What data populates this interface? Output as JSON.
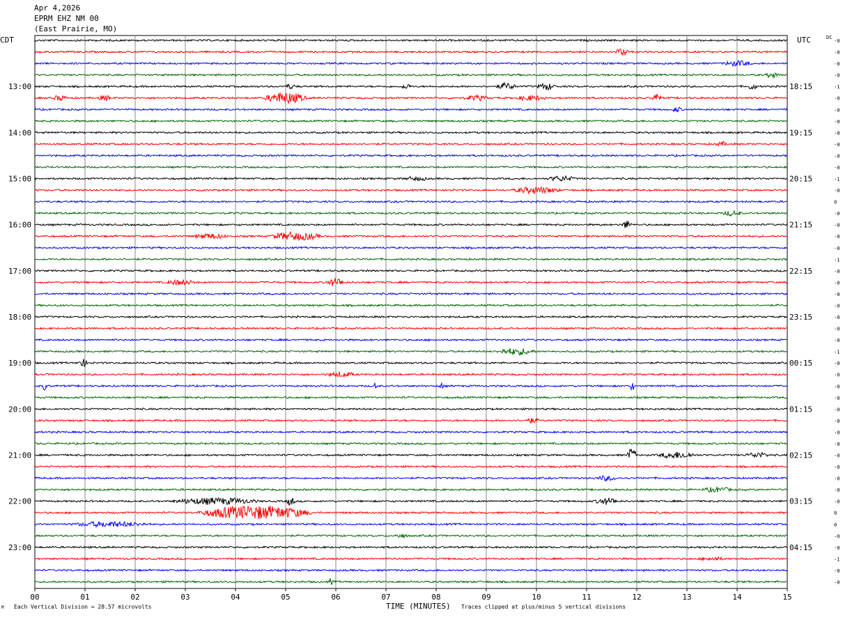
{
  "header": {
    "date": "Apr 4,2026",
    "station": "EPRM EHZ NM 00",
    "location": "(East Prairie, MO)"
  },
  "left_tz": "CDT",
  "right_tz": "UTC",
  "dc_label": "DC",
  "footer": {
    "scale_note": "Each Vertical Division =   28.57 microvolts",
    "xlabel": "TIME (MINUTES)",
    "clip_note": "Traces clipped at plus/minus 5 vertical divisions",
    "corner_mark": "M"
  },
  "colors": {
    "trace_cycle": [
      "#000000",
      "#ff0000",
      "#0000ff",
      "#006600"
    ],
    "grid": "#888888"
  },
  "chart_data": {
    "type": "line",
    "title": "EPRM EHZ NM 00",
    "xlabel": "TIME (MINUTES)",
    "ylabel": "",
    "xlim": [
      0,
      15
    ],
    "x_ticks": [
      "00",
      "01",
      "02",
      "03",
      "04",
      "05",
      "06",
      "07",
      "08",
      "09",
      "10",
      "11",
      "12",
      "13",
      "14",
      "15"
    ],
    "rows": 48,
    "left_time_labels": [
      {
        "row": 4,
        "label": "13:00"
      },
      {
        "row": 8,
        "label": "14:00"
      },
      {
        "row": 12,
        "label": "15:00"
      },
      {
        "row": 16,
        "label": "16:00"
      },
      {
        "row": 20,
        "label": "17:00"
      },
      {
        "row": 24,
        "label": "18:00"
      },
      {
        "row": 28,
        "label": "19:00"
      },
      {
        "row": 32,
        "label": "20:00"
      },
      {
        "row": 36,
        "label": "21:00"
      },
      {
        "row": 40,
        "label": "22:00"
      },
      {
        "row": 44,
        "label": "23:00"
      }
    ],
    "right_time_labels": [
      {
        "row": 4,
        "label": "18:15"
      },
      {
        "row": 8,
        "label": "19:15"
      },
      {
        "row": 12,
        "label": "20:15"
      },
      {
        "row": 16,
        "label": "21:15"
      },
      {
        "row": 20,
        "label": "22:15"
      },
      {
        "row": 24,
        "label": "23:15"
      },
      {
        "row": 28,
        "label": "00:15"
      },
      {
        "row": 32,
        "label": "01:15"
      },
      {
        "row": 36,
        "label": "02:15"
      },
      {
        "row": 40,
        "label": "03:15"
      },
      {
        "row": 44,
        "label": "04:15"
      }
    ],
    "dc_offsets": [
      "-0",
      "-0",
      "-0",
      "-0",
      "-1",
      "-0",
      "-0",
      "-0",
      "-0",
      "-0",
      "-0",
      "-0",
      "-1",
      "-0",
      "0",
      "-0",
      "-0",
      "-0",
      "-0",
      "-1",
      "-0",
      "-0",
      "-0",
      "-0",
      "-0",
      "-0",
      "-0",
      "-1",
      "-0",
      "-0",
      "-0",
      "-0",
      "-0",
      "-0",
      "-0",
      "-0",
      "-0",
      "-0",
      "-0",
      "-0",
      "-0",
      "0",
      "0",
      "-0",
      "-0",
      "-1",
      "-0",
      "-0"
    ],
    "events": [
      {
        "row": 1,
        "minute": 11.7,
        "width": 0.3,
        "amp": 4
      },
      {
        "row": 2,
        "minute": 14.0,
        "width": 0.6,
        "amp": 3
      },
      {
        "row": 3,
        "minute": 14.7,
        "width": 0.3,
        "amp": 3
      },
      {
        "row": 4,
        "minute": 5.1,
        "width": 0.2,
        "amp": 3
      },
      {
        "row": 4,
        "minute": 7.4,
        "width": 0.2,
        "amp": 3
      },
      {
        "row": 4,
        "minute": 9.4,
        "width": 0.4,
        "amp": 4
      },
      {
        "row": 4,
        "minute": 10.2,
        "width": 0.4,
        "amp": 4
      },
      {
        "row": 4,
        "minute": 14.3,
        "width": 0.2,
        "amp": 4
      },
      {
        "row": 5,
        "minute": 0.5,
        "width": 0.3,
        "amp": 3
      },
      {
        "row": 5,
        "minute": 1.4,
        "width": 0.3,
        "amp": 3
      },
      {
        "row": 5,
        "minute": 5.0,
        "width": 0.9,
        "amp": 7
      },
      {
        "row": 5,
        "minute": 8.8,
        "width": 0.5,
        "amp": 3
      },
      {
        "row": 5,
        "minute": 9.9,
        "width": 0.6,
        "amp": 3
      },
      {
        "row": 5,
        "minute": 12.4,
        "width": 0.2,
        "amp": 5
      },
      {
        "row": 6,
        "minute": 12.8,
        "width": 0.2,
        "amp": 3
      },
      {
        "row": 9,
        "minute": 13.7,
        "width": 0.3,
        "amp": 2
      },
      {
        "row": 12,
        "minute": 7.6,
        "width": 0.5,
        "amp": 2
      },
      {
        "row": 12,
        "minute": 10.5,
        "width": 0.6,
        "amp": 3
      },
      {
        "row": 13,
        "minute": 10.0,
        "width": 1.0,
        "amp": 4
      },
      {
        "row": 15,
        "minute": 13.9,
        "width": 0.4,
        "amp": 3
      },
      {
        "row": 16,
        "minute": 11.8,
        "width": 0.2,
        "amp": 5
      },
      {
        "row": 17,
        "minute": 3.5,
        "width": 0.7,
        "amp": 3
      },
      {
        "row": 17,
        "minute": 5.2,
        "width": 1.1,
        "amp": 5
      },
      {
        "row": 21,
        "minute": 2.9,
        "width": 0.6,
        "amp": 3
      },
      {
        "row": 21,
        "minute": 6.0,
        "width": 0.4,
        "amp": 5
      },
      {
        "row": 27,
        "minute": 9.6,
        "width": 0.8,
        "amp": 4
      },
      {
        "row": 28,
        "minute": 0.95,
        "width": 0.2,
        "amp": 5
      },
      {
        "row": 29,
        "minute": 6.1,
        "width": 0.6,
        "amp": 3
      },
      {
        "row": 30,
        "minute": 0.2,
        "width": 0.1,
        "amp": 6
      },
      {
        "row": 30,
        "minute": 6.8,
        "width": 0.1,
        "amp": 5
      },
      {
        "row": 30,
        "minute": 8.1,
        "width": 0.1,
        "amp": 4
      },
      {
        "row": 30,
        "minute": 11.9,
        "width": 0.1,
        "amp": 7
      },
      {
        "row": 33,
        "minute": 9.9,
        "width": 0.3,
        "amp": 3
      },
      {
        "row": 36,
        "minute": 11.9,
        "width": 0.2,
        "amp": 9
      },
      {
        "row": 36,
        "minute": 12.8,
        "width": 0.8,
        "amp": 4
      },
      {
        "row": 36,
        "minute": 14.4,
        "width": 0.5,
        "amp": 3
      },
      {
        "row": 38,
        "minute": 11.4,
        "width": 0.4,
        "amp": 3
      },
      {
        "row": 39,
        "minute": 13.6,
        "width": 0.6,
        "amp": 3
      },
      {
        "row": 40,
        "minute": 3.6,
        "width": 1.8,
        "amp": 4
      },
      {
        "row": 40,
        "minute": 5.1,
        "width": 0.2,
        "amp": 5
      },
      {
        "row": 40,
        "minute": 11.4,
        "width": 0.5,
        "amp": 4
      },
      {
        "row": 41,
        "minute": 4.4,
        "width": 2.4,
        "amp": 9
      },
      {
        "row": 42,
        "minute": 1.5,
        "width": 1.6,
        "amp": 3
      },
      {
        "row": 43,
        "minute": 7.3,
        "width": 0.3,
        "amp": 2
      },
      {
        "row": 45,
        "minute": 13.5,
        "width": 0.5,
        "amp": 2
      },
      {
        "row": 47,
        "minute": 5.9,
        "width": 0.1,
        "amp": 4
      }
    ]
  }
}
